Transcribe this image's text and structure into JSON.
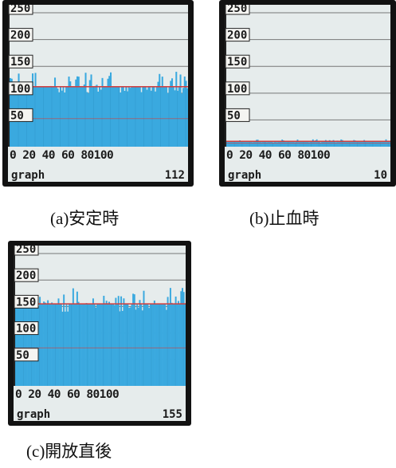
{
  "panels": [
    {
      "caption": "(a)安定時",
      "status_label": "graph",
      "status_value": "112",
      "y_ticks": [
        "250",
        "200",
        "150",
        "100",
        "50"
      ],
      "x_ticks_text": "0 20 40 60 80100",
      "level": 112,
      "noise": 28
    },
    {
      "caption": "(b)止血時",
      "status_label": "graph",
      "status_value": "10",
      "y_ticks": [
        "250",
        "200",
        "150",
        "100",
        "50"
      ],
      "x_ticks_text": "0 20 40 60 80100",
      "level": 10,
      "noise": 4
    },
    {
      "caption": "(c)開放直後",
      "status_label": "graph",
      "status_value": "155",
      "y_ticks": [
        "250",
        "200",
        "150",
        "100",
        "50"
      ],
      "x_ticks_text": "0 20 40 60 80100",
      "level": 155,
      "noise": 30
    }
  ],
  "colors": {
    "bezel": "#121212",
    "screen": "#e6ecec",
    "bars": "#3aa9df",
    "red_line": "#d23c3c",
    "grid": "#777777",
    "label_box": "#f5f5f2"
  }
}
